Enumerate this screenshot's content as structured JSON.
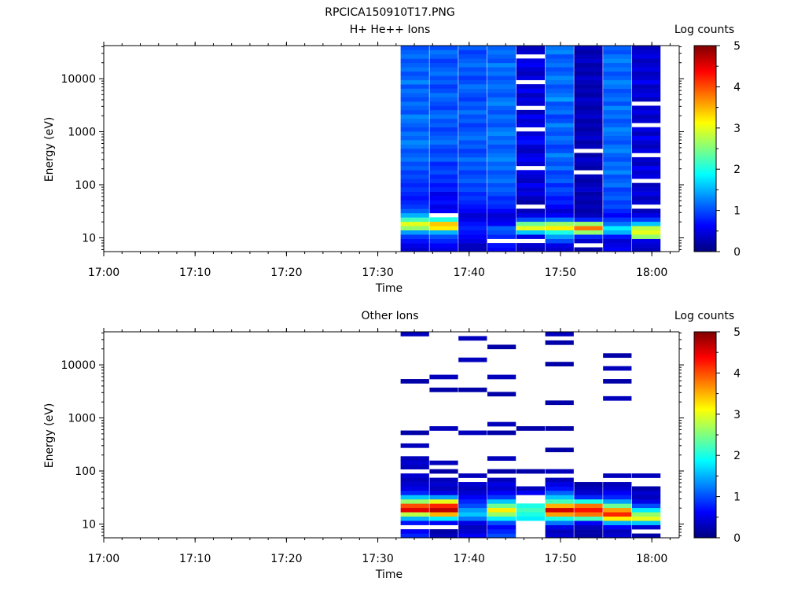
{
  "figure_title": "RPCICA150910T17.PNG",
  "chart_data": [
    {
      "type": "heatmap",
      "title": "H+ He++ Ions",
      "xlabel": "Time",
      "ylabel": "Energy (eV)",
      "colorbar_label": "Log counts",
      "y_scale": "log",
      "ylim": [
        5.5,
        42000
      ],
      "xlim": [
        "17:00",
        "18:03"
      ],
      "x_ticks": [
        "17:00",
        "17:10",
        "17:20",
        "17:30",
        "17:40",
        "17:50",
        "18:00"
      ],
      "y_ticks": [
        "10",
        "100",
        "1000",
        "10000"
      ],
      "colorbar_ticks": [
        "0",
        "1",
        "2",
        "3",
        "4",
        "5"
      ],
      "colorbar_range": [
        0,
        5
      ],
      "grid": false,
      "time_bins": [
        "17:32:30",
        "17:35:40",
        "17:38:50",
        "17:42:00",
        "17:45:10",
        "17:48:20",
        "17:51:30",
        "17:54:40",
        "17:57:50"
      ],
      "bin_minutes": 3.17,
      "energy_bins_per_column": 48,
      "energy_min_eV": 5.5,
      "energy_max_eV": 42000,
      "columns": [
        {
          "time": "17:32:30",
          "levels_low_to_high": [
            0.4,
            0.5,
            0.7,
            0.9,
            1.4,
            2.6,
            3.0,
            2.2,
            1.5,
            1.1,
            0.9,
            0.8,
            0.7,
            0.8,
            0.9,
            0.8,
            0.9,
            1.0,
            0.9,
            1.1,
            1.0,
            1.2,
            1.1,
            1.0,
            1.2,
            1.3,
            1.1,
            1.2,
            1.0,
            1.1,
            1.2,
            1.3,
            1.0,
            1.1,
            1.2,
            1.0,
            1.1,
            1.2,
            1.0,
            1.3,
            1.1,
            1.0,
            1.2,
            1.1,
            1.0,
            1.2,
            1.1,
            1.0
          ]
        },
        {
          "time": "17:35:40",
          "levels_low_to_high": [
            0.5,
            0.6,
            0.8,
            1.0,
            1.5,
            3.2,
            3.4,
            2.0,
            null,
            0.6,
            0.5,
            0.7,
            0.6,
            0.5,
            0.8,
            0.7,
            0.9,
            0.8,
            1.0,
            0.9,
            0.8,
            1.1,
            1.0,
            0.9,
            1.0,
            1.2,
            1.1,
            1.0,
            0.9,
            1.1,
            1.0,
            1.2,
            1.1,
            0.9,
            1.0,
            1.1,
            1.2,
            1.0,
            0.9,
            1.1,
            1.0,
            1.2,
            1.1,
            1.0,
            0.9,
            1.1,
            1.2,
            1.0
          ]
        },
        {
          "time": "17:38:50",
          "levels_low_to_high": [
            0.3,
            0.3,
            0.5,
            0.6,
            0.7,
            0.8,
            0.7,
            0.5,
            0.4,
            0.6,
            0.7,
            0.8,
            0.9,
            0.8,
            1.0,
            0.9,
            1.1,
            1.0,
            0.9,
            1.1,
            1.0,
            1.2,
            1.0,
            0.9,
            1.1,
            1.0,
            1.2,
            1.1,
            1.0,
            0.9,
            1.1,
            1.0,
            1.2,
            1.0,
            1.1,
            0.9,
            1.0,
            1.1,
            1.2,
            1.0,
            0.9,
            1.1,
            1.0,
            1.2,
            1.1,
            1.0,
            0.9,
            1.1
          ]
        },
        {
          "time": "17:42:00",
          "levels_low_to_high": [
            0.6,
            0.7,
            null,
            0.8,
            1.0,
            1.1,
            0.6,
            0.5,
            0.4,
            0.6,
            0.8,
            0.9,
            0.8,
            1.0,
            1.1,
            1.0,
            1.2,
            1.1,
            1.0,
            1.2,
            1.1,
            1.3,
            1.2,
            1.1,
            1.0,
            1.2,
            1.1,
            1.3,
            1.2,
            1.0,
            1.1,
            1.2,
            1.0,
            1.1,
            1.3,
            1.2,
            1.0,
            1.1,
            1.2,
            1.1,
            1.0,
            1.2,
            1.1,
            1.3,
            1.0,
            1.1,
            1.2,
            1.1
          ]
        },
        {
          "time": "17:45:10",
          "levels_low_to_high": [
            0.3,
            0.4,
            null,
            0.5,
            1.6,
            3.0,
            2.4,
            1.0,
            0.5,
            0.3,
            null,
            0.2,
            0.3,
            0.5,
            0.4,
            0.6,
            0.3,
            0.4,
            0.5,
            null,
            0.4,
            0.6,
            0.5,
            0.3,
            0.4,
            0.7,
            0.6,
            0.4,
            null,
            0.5,
            0.4,
            0.6,
            0.3,
            null,
            0.4,
            0.5,
            0.3,
            0.6,
            0.4,
            null,
            0.5,
            0.3,
            0.4,
            0.6,
            0.5,
            null,
            0.4,
            0.3
          ]
        },
        {
          "time": "17:48:20",
          "levels_low_to_high": [
            0.4,
            0.5,
            1.0,
            1.4,
            2.0,
            3.2,
            2.6,
            1.2,
            0.6,
            0.4,
            0.6,
            0.8,
            0.7,
            0.9,
            1.0,
            0.8,
            1.1,
            1.0,
            0.9,
            1.2,
            1.0,
            1.1,
            1.3,
            1.0,
            0.9,
            1.1,
            1.2,
            1.0,
            1.1,
            1.3,
            1.0,
            0.9,
            1.2,
            1.1,
            1.0,
            1.4,
            1.2,
            1.1,
            1.0,
            1.2,
            1.3,
            1.1,
            1.0,
            1.2,
            1.1,
            1.0,
            1.3,
            1.2
          ]
        },
        {
          "time": "17:51:30",
          "levels_low_to_high": [
            0.2,
            null,
            0.4,
            0.8,
            2.6,
            3.8,
            2.6,
            0.8,
            0.3,
            0.2,
            0.3,
            0.2,
            0.3,
            0.2,
            0.4,
            0.3,
            0.2,
            0.3,
            null,
            0.2,
            0.3,
            0.4,
            0.2,
            null,
            0.3,
            0.2,
            0.4,
            0.3,
            0.2,
            0.3,
            0.2,
            0.4,
            0.3,
            0.2,
            0.3,
            0.4,
            0.2,
            0.3,
            0.2,
            0.3,
            0.4,
            0.2,
            0.3,
            0.2,
            0.4,
            0.3,
            0.2,
            0.3
          ]
        },
        {
          "time": "17:54:40",
          "levels_low_to_high": [
            0.6,
            0.5,
            0.4,
            0.7,
            1.5,
            1.8,
            1.2,
            0.9,
            0.6,
            0.8,
            1.0,
            0.9,
            1.1,
            1.0,
            0.9,
            1.2,
            1.1,
            1.0,
            1.3,
            1.1,
            1.2,
            1.0,
            1.1,
            1.3,
            1.2,
            1.0,
            1.1,
            1.2,
            1.3,
            1.1,
            1.0,
            1.2,
            1.1,
            1.3,
            1.0,
            1.2,
            1.1,
            1.0,
            1.2,
            1.3,
            1.1,
            1.0,
            1.2,
            1.1,
            1.3,
            1.2,
            1.0,
            1.1
          ]
        },
        {
          "time": "17:57:50",
          "levels_low_to_high": [
            0.3,
            0.4,
            0.5,
            2.6,
            3.0,
            2.8,
            1.6,
            0.9,
            0.5,
            0.3,
            null,
            0.4,
            0.3,
            0.5,
            0.4,
            0.3,
            null,
            0.5,
            0.4,
            0.6,
            0.3,
            0.4,
            null,
            0.5,
            0.3,
            0.4,
            0.6,
            0.3,
            0.5,
            null,
            0.4,
            0.3,
            0.5,
            0.4,
            null,
            0.3,
            0.5,
            0.4,
            0.3,
            0.6,
            0.4,
            0.3,
            0.5,
            0.4,
            0.3,
            0.5,
            0.4,
            0.3
          ]
        }
      ]
    },
    {
      "type": "heatmap",
      "title": "Other Ions",
      "xlabel": "Time",
      "ylabel": "Energy (eV)",
      "colorbar_label": "Log counts",
      "y_scale": "log",
      "ylim": [
        5.5,
        42000
      ],
      "xlim": [
        "17:00",
        "18:03"
      ],
      "x_ticks": [
        "17:00",
        "17:10",
        "17:20",
        "17:30",
        "17:40",
        "17:50",
        "18:00"
      ],
      "y_ticks": [
        "10",
        "100",
        "1000",
        "10000"
      ],
      "colorbar_ticks": [
        "0",
        "1",
        "2",
        "3",
        "4",
        "5"
      ],
      "colorbar_range": [
        0,
        5
      ],
      "grid": false,
      "time_bins": [
        "17:32:30",
        "17:35:40",
        "17:38:50",
        "17:42:00",
        "17:45:10",
        "17:48:20",
        "17:51:30",
        "17:54:40",
        "17:57:50"
      ],
      "bin_minutes": 3.17,
      "energy_bins_per_column": 48,
      "energy_min_eV": 5.5,
      "energy_max_eV": 42000,
      "columns": [
        {
          "time": "17:32:30",
          "levels_low_to_high": [
            0.8,
            0.6,
            null,
            0.7,
            1.5,
            2.8,
            4.5,
            4.0,
            2.6,
            1.6,
            0.8,
            0.5,
            0.4,
            0.3,
            0.4,
            null,
            0.3,
            0.4,
            0.3,
            null,
            null,
            0.3,
            null,
            null,
            0.2,
            null,
            null,
            null,
            null,
            null,
            null,
            null,
            null,
            null,
            null,
            null,
            0.2,
            null,
            null,
            null,
            null,
            null,
            null,
            null,
            null,
            null,
            null,
            0.3
          ]
        },
        {
          "time": "17:35:40",
          "levels_low_to_high": [
            0.3,
            0.2,
            null,
            0.6,
            1.8,
            3.5,
            4.7,
            4.2,
            3.0,
            1.4,
            0.5,
            0.3,
            0.4,
            0.3,
            null,
            0.2,
            null,
            0.3,
            null,
            null,
            null,
            null,
            null,
            null,
            null,
            0.3,
            null,
            null,
            null,
            null,
            null,
            null,
            null,
            null,
            0.2,
            null,
            null,
            0.3,
            null,
            null,
            null,
            null,
            null,
            null,
            null,
            null,
            null,
            null
          ]
        },
        {
          "time": "17:38:50",
          "levels_low_to_high": [
            0.6,
            0.4,
            0.3,
            0.5,
            1.2,
            1.6,
            1.4,
            1.0,
            0.8,
            0.6,
            0.4,
            0.3,
            0.4,
            null,
            0.3,
            null,
            null,
            null,
            null,
            null,
            null,
            null,
            null,
            null,
            0.3,
            null,
            null,
            null,
            null,
            null,
            null,
            null,
            null,
            null,
            0.2,
            null,
            null,
            null,
            null,
            null,
            null,
            0.3,
            null,
            null,
            null,
            null,
            0.3,
            null
          ]
        },
        {
          "time": "17:42:00",
          "levels_low_to_high": [
            1.0,
            0.8,
            0.6,
            1.0,
            1.8,
            2.6,
            3.2,
            2.4,
            1.6,
            0.9,
            0.6,
            0.4,
            0.5,
            0.3,
            null,
            0.2,
            null,
            null,
            0.3,
            null,
            null,
            null,
            null,
            null,
            0.2,
            null,
            0.3,
            null,
            null,
            null,
            null,
            null,
            null,
            0.2,
            null,
            null,
            null,
            0.3,
            null,
            null,
            null,
            null,
            null,
            null,
            0.2,
            null,
            null,
            null
          ]
        },
        {
          "time": "17:45:10",
          "levels_low_to_high": [
            null,
            null,
            null,
            null,
            1.8,
            2.0,
            2.2,
            2.0,
            null,
            null,
            0.6,
            0.3,
            null,
            null,
            null,
            0.2,
            null,
            null,
            null,
            null,
            null,
            null,
            null,
            null,
            null,
            0.2,
            null,
            null,
            null,
            null,
            null,
            null,
            null,
            null,
            null,
            null,
            null,
            null,
            null,
            null,
            null,
            null,
            null,
            null,
            null,
            null,
            null,
            null
          ]
        },
        {
          "time": "17:48:20",
          "levels_low_to_high": [
            0.4,
            0.3,
            0.5,
            1.2,
            2.0,
            3.6,
            4.6,
            3.5,
            2.2,
            1.6,
            1.1,
            0.7,
            0.5,
            0.3,
            null,
            0.3,
            null,
            null,
            null,
            null,
            0.2,
            null,
            null,
            null,
            null,
            0.2,
            null,
            null,
            null,
            null,
            null,
            0.2,
            null,
            null,
            null,
            null,
            null,
            null,
            null,
            null,
            0.2,
            null,
            null,
            null,
            null,
            0.2,
            null,
            0.3
          ]
        },
        {
          "time": "17:51:30",
          "levels_low_to_high": [
            0.2,
            0.2,
            0.3,
            0.6,
            2.2,
            3.8,
            4.3,
            3.8,
            2.0,
            0.8,
            0.4,
            0.3,
            0.2,
            null,
            null,
            null,
            null,
            null,
            null,
            null,
            null,
            null,
            null,
            null,
            null,
            null,
            null,
            null,
            null,
            null,
            null,
            null,
            null,
            null,
            null,
            null,
            null,
            null,
            null,
            null,
            null,
            null,
            null,
            null,
            null,
            null,
            null,
            null
          ]
        },
        {
          "time": "17:54:40",
          "levels_low_to_high": [
            0.4,
            0.3,
            0.6,
            1.5,
            3.2,
            4.2,
            3.6,
            2.4,
            1.4,
            0.8,
            0.6,
            0.4,
            0.3,
            null,
            0.3,
            null,
            null,
            null,
            null,
            null,
            null,
            null,
            null,
            null,
            null,
            null,
            null,
            null,
            null,
            null,
            null,
            null,
            0.3,
            null,
            null,
            null,
            0.2,
            null,
            null,
            0.3,
            null,
            null,
            0.2,
            null,
            null,
            null,
            null,
            null
          ]
        },
        {
          "time": "17:57:50",
          "levels_low_to_high": [
            0.2,
            null,
            0.4,
            1.6,
            3.0,
            2.6,
            1.8,
            1.0,
            0.5,
            0.3,
            0.4,
            0.2,
            null,
            null,
            0.3,
            null,
            null,
            null,
            null,
            null,
            null,
            null,
            null,
            null,
            null,
            null,
            null,
            null,
            null,
            null,
            null,
            null,
            null,
            null,
            null,
            null,
            null,
            null,
            null,
            null,
            null,
            null,
            null,
            null,
            null,
            null,
            null,
            null
          ]
        }
      ]
    }
  ],
  "colors": {
    "colormap": "jet",
    "axis": "#000000",
    "background": "#ffffff",
    "missing": "#ffffff"
  }
}
